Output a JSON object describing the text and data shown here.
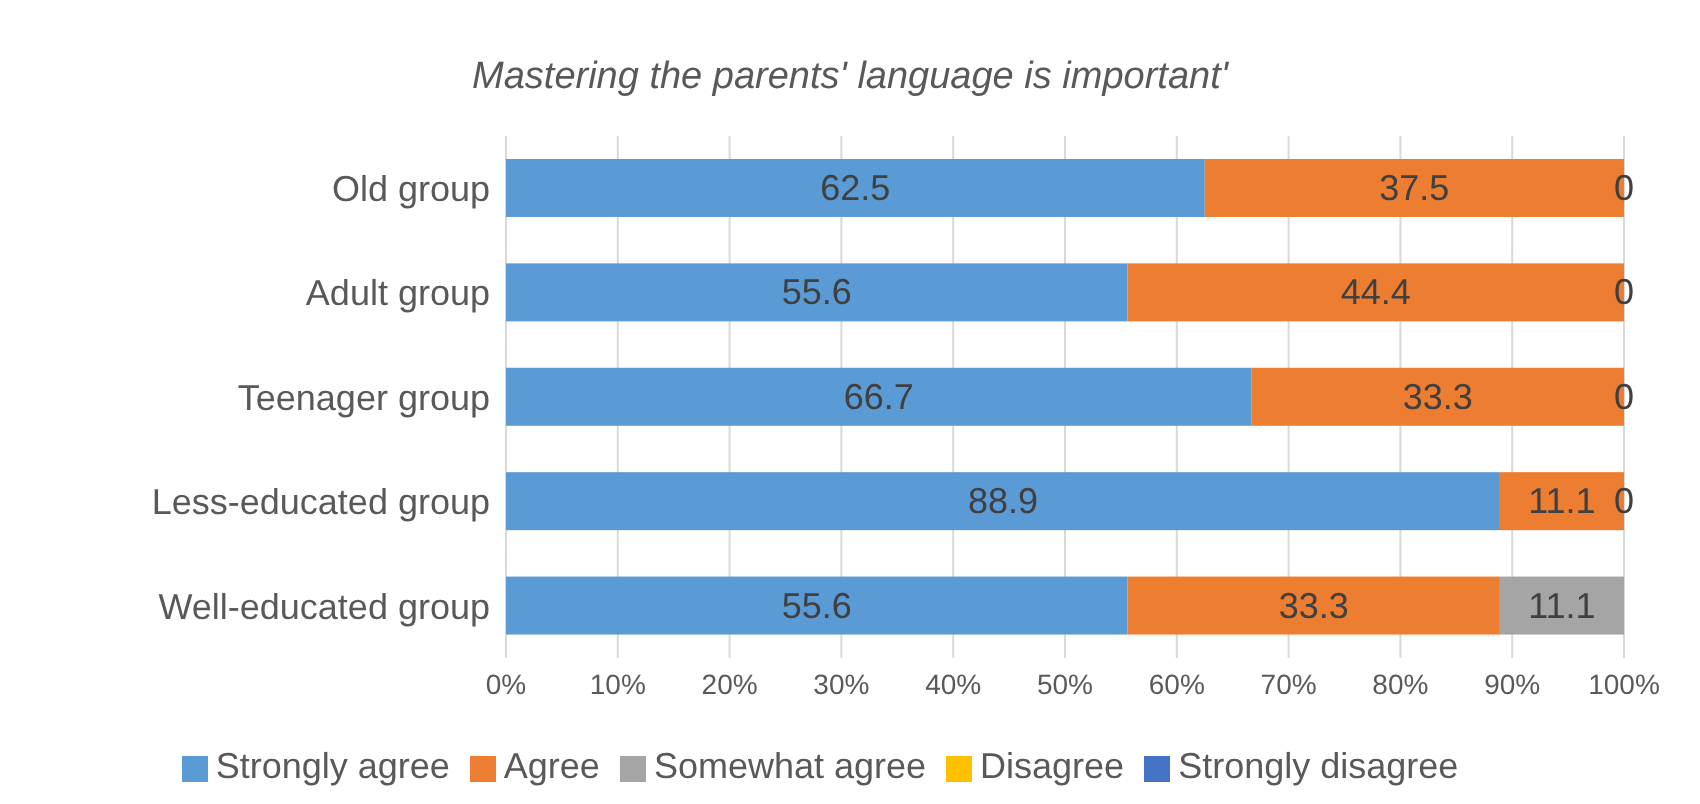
{
  "chart_data": {
    "type": "bar",
    "orientation": "horizontal",
    "stacked": true,
    "title": "Mastering the parents' language is important'",
    "categories": [
      "Old group",
      "Adult group",
      "Teenager group",
      "Less-educated group",
      "Well-educated group"
    ],
    "series": [
      {
        "name": "Strongly agree",
        "color": "#5b9bd5",
        "values": [
          62.5,
          55.6,
          66.7,
          88.9,
          55.6
        ],
        "value_labels": [
          "62.5",
          "55.6",
          "66.7",
          "88.9",
          "55.6"
        ]
      },
      {
        "name": "Agree",
        "color": "#ed7d31",
        "values": [
          37.5,
          44.4,
          33.3,
          11.1,
          33.3
        ],
        "value_labels": [
          "37.5",
          "44.4",
          "33.3",
          "11.1",
          "33.3"
        ]
      },
      {
        "name": "Somewhat agree",
        "color": "#a5a5a5",
        "values": [
          0,
          0,
          0,
          0,
          11.1
        ],
        "value_labels": [
          "0",
          "0",
          "0",
          "0",
          "11.1"
        ]
      },
      {
        "name": "Disagree",
        "color": "#ffc000",
        "values": [
          0,
          0,
          0,
          0,
          0
        ]
      },
      {
        "name": "Strongly disagree",
        "color": "#4472c4",
        "values": [
          0,
          0,
          0,
          0,
          0
        ]
      }
    ],
    "xlim": [
      0,
      100
    ],
    "xticks": [
      {
        "value": 0,
        "label": "0%"
      },
      {
        "value": 10,
        "label": "10%"
      },
      {
        "value": 20,
        "label": "20%"
      },
      {
        "value": 30,
        "label": "30%"
      },
      {
        "value": 40,
        "label": "40%"
      },
      {
        "value": 50,
        "label": "50%"
      },
      {
        "value": 60,
        "label": "60%"
      },
      {
        "value": 70,
        "label": "70%"
      },
      {
        "value": 80,
        "label": "80%"
      },
      {
        "value": 90,
        "label": "90%"
      },
      {
        "value": 100,
        "label": "100%"
      }
    ],
    "grid": "x",
    "legend": "bottom"
  }
}
